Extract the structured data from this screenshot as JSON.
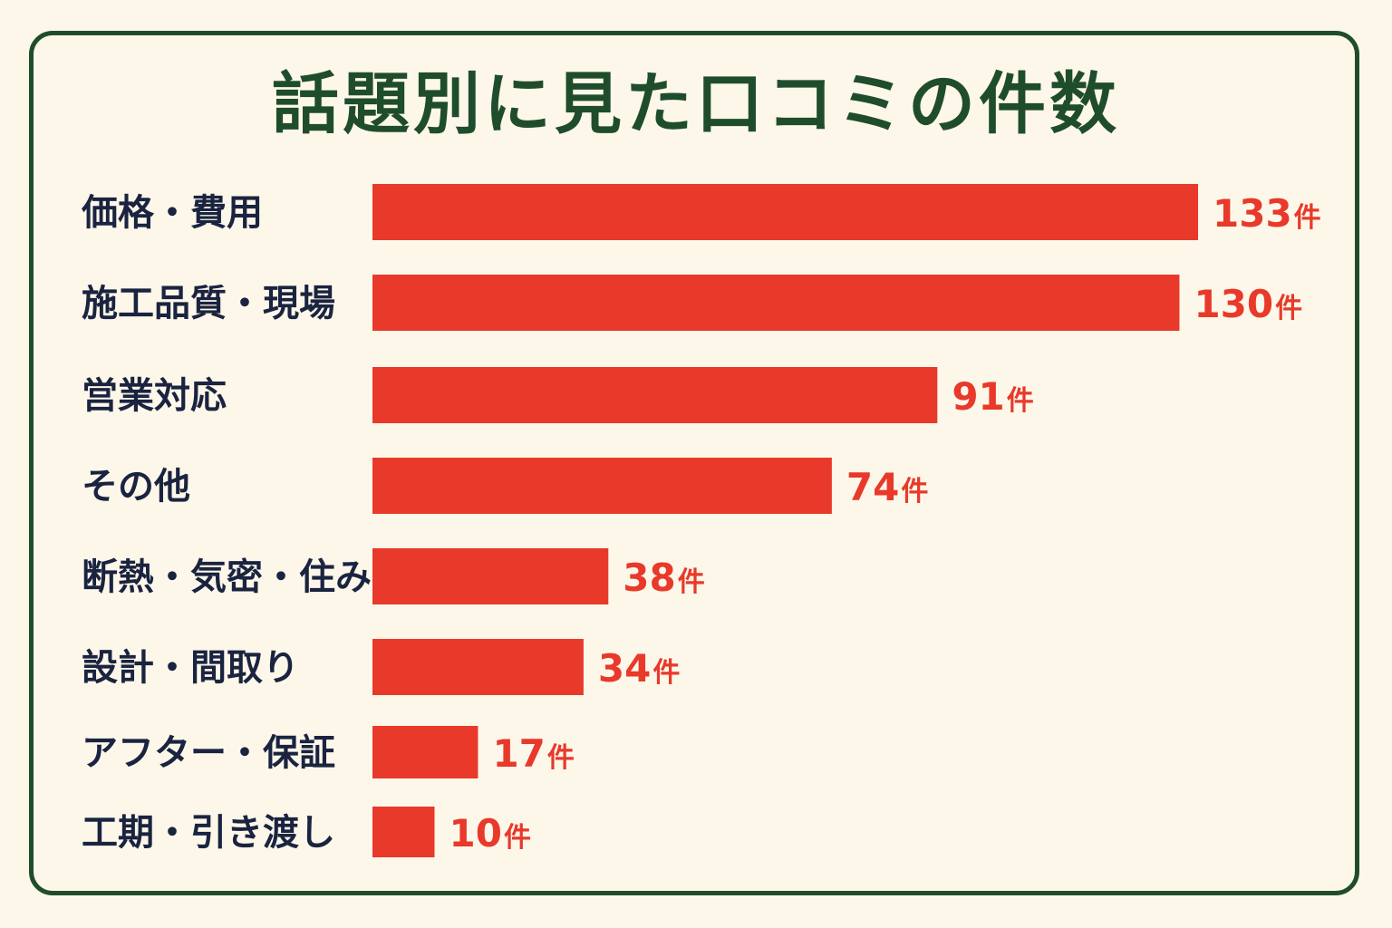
{
  "chart_data": {
    "type": "bar",
    "orientation": "horizontal",
    "title": "話題別に見た口コミの件数",
    "categories": [
      "価格・費用",
      "施工品質・現場",
      "営業対応",
      "その他",
      "断熱・気密・住み心地",
      "設計・間取り",
      "アフター・保証",
      "工期・引き渡し"
    ],
    "values": [
      133,
      130,
      91,
      74,
      38,
      34,
      17,
      10
    ],
    "value_unit": "件",
    "bar_color": "#e8392a",
    "title_color": "#1f4d2c",
    "label_color": "#1a2440",
    "frame_color": "#1f4d2c",
    "background_color": "#fdf7ea",
    "grid": false,
    "legend": "none"
  }
}
